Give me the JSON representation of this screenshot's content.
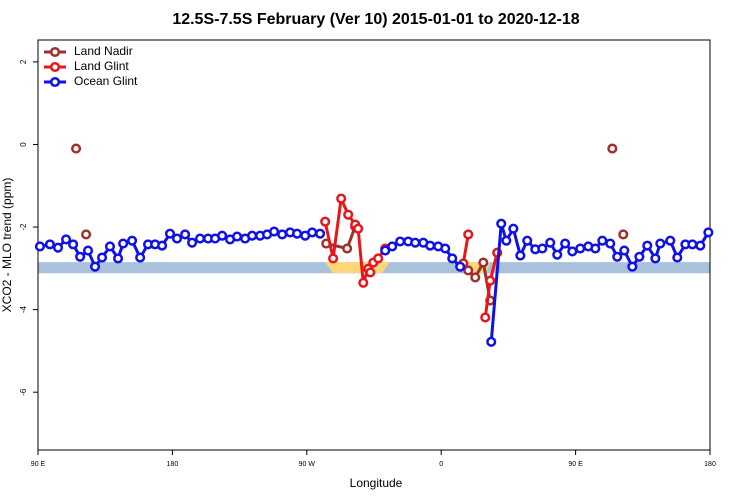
{
  "chart_data": {
    "type": "line",
    "title": "12.5S-7.5S February (Ver 10)   2015-01-01 to 2020-12-18",
    "x_label": "Longitude",
    "y_label": "XCO2 - MLO trend (ppm)",
    "xlim": [
      90,
      540
    ],
    "ylim": [
      -7.4,
      2.53
    ],
    "xticks": [
      {
        "value": 90,
        "label": "90 E"
      },
      {
        "value": 180,
        "label": "180"
      },
      {
        "value": 270,
        "label": "90 W"
      },
      {
        "value": 360,
        "label": "0"
      },
      {
        "value": 450,
        "label": "90 E"
      },
      {
        "value": 540,
        "label": "180"
      }
    ],
    "yticks": [
      2,
      0,
      -2,
      -4,
      -6
    ],
    "legend": "top-left",
    "band": {
      "ymin": -3.12,
      "ymax": -2.85,
      "color": "#a9c1dd"
    },
    "series": [
      {
        "name": "Land Nadir",
        "color": "#a0302c",
        "x": [
          115.5,
          null,
          122.2,
          null,
          283,
          297,
          302.4,
          null,
          378.1,
          382.8,
          388.2,
          392.8,
          null,
          474.6,
          null,
          481.9
        ],
        "values": [
          -0.1,
          null,
          -2.18,
          null,
          -2.4,
          -2.52,
          -1.99,
          null,
          -3.05,
          -3.22,
          -2.86,
          -3.78,
          null,
          -0.1,
          null,
          -2.18
        ]
      },
      {
        "name": "Land Glint",
        "color": "#e8161b",
        "x": [
          282.3,
          287.6,
          293,
          297.7,
          302.4,
          304.4,
          307.8,
          311.1,
          312.5,
          314.5,
          317.8,
          322.5,
          null,
          374.8,
          378.1,
          null,
          389.5,
          392.8,
          397.5
        ],
        "values": [
          -1.87,
          -2.76,
          -1.31,
          -1.7,
          -1.94,
          -2.04,
          -3.35,
          -3.01,
          -3.1,
          -2.86,
          -2.76,
          -2.52,
          null,
          -2.88,
          -2.18,
          null,
          -4.19,
          -3.3,
          -2.62
        ]
      },
      {
        "name": "Ocean Glint",
        "color": "#1010e8",
        "x": [
          91.3,
          98,
          103.4,
          108.8,
          113.5,
          118.2,
          123.5,
          128.2,
          132.9,
          138.2,
          143.6,
          147,
          153,
          158.4,
          163.7,
          168.4,
          173.1,
          178.4,
          183.1,
          188.5,
          193.2,
          198.5,
          203.9,
          208.6,
          213.3,
          218.6,
          223.3,
          228.7,
          233.4,
          238.7,
          243.4,
          248.1,
          253.5,
          258.8,
          263.5,
          268.9,
          273.6,
          278.9,
          null,
          322.5,
          327.2,
          332.5,
          337.9,
          342.6,
          348,
          352.6,
          358,
          362.7,
          367.4,
          372.7,
          null,
          393.5,
          400.2,
          403.6,
          408.3,
          413,
          417.6,
          423,
          427.7,
          433,
          437.7,
          443,
          447.8,
          453.1,
          458.5,
          463.2,
          467.9,
          473.2,
          477.9,
          482.6,
          488,
          492.7,
          498,
          503.4,
          506.7,
          513.4,
          518.1,
          523.5,
          528.2,
          533.5,
          538.9
        ],
        "values": [
          -2.47,
          -2.42,
          -2.5,
          -2.3,
          -2.42,
          -2.72,
          -2.57,
          -2.96,
          -2.74,
          -2.47,
          -2.76,
          -2.4,
          -2.33,
          -2.74,
          -2.42,
          -2.42,
          -2.45,
          -2.16,
          -2.28,
          -2.18,
          -2.38,
          -2.28,
          -2.28,
          -2.28,
          -2.21,
          -2.3,
          -2.23,
          -2.28,
          -2.21,
          -2.21,
          -2.18,
          -2.11,
          -2.18,
          -2.13,
          -2.16,
          -2.21,
          -2.13,
          -2.16,
          null,
          -2.57,
          -2.47,
          -2.35,
          -2.35,
          -2.38,
          -2.38,
          -2.45,
          -2.47,
          -2.52,
          -2.76,
          -2.96,
          null,
          -4.78,
          -1.92,
          -2.33,
          -2.04,
          -2.69,
          -2.33,
          -2.54,
          -2.52,
          -2.38,
          -2.67,
          -2.4,
          -2.59,
          -2.52,
          -2.47,
          -2.52,
          -2.33,
          -2.4,
          -2.72,
          -2.57,
          -2.96,
          -2.72,
          -2.45,
          -2.76,
          -2.4,
          -2.33,
          -2.74,
          -2.42,
          -2.42,
          -2.45,
          -2.13
        ]
      }
    ]
  }
}
